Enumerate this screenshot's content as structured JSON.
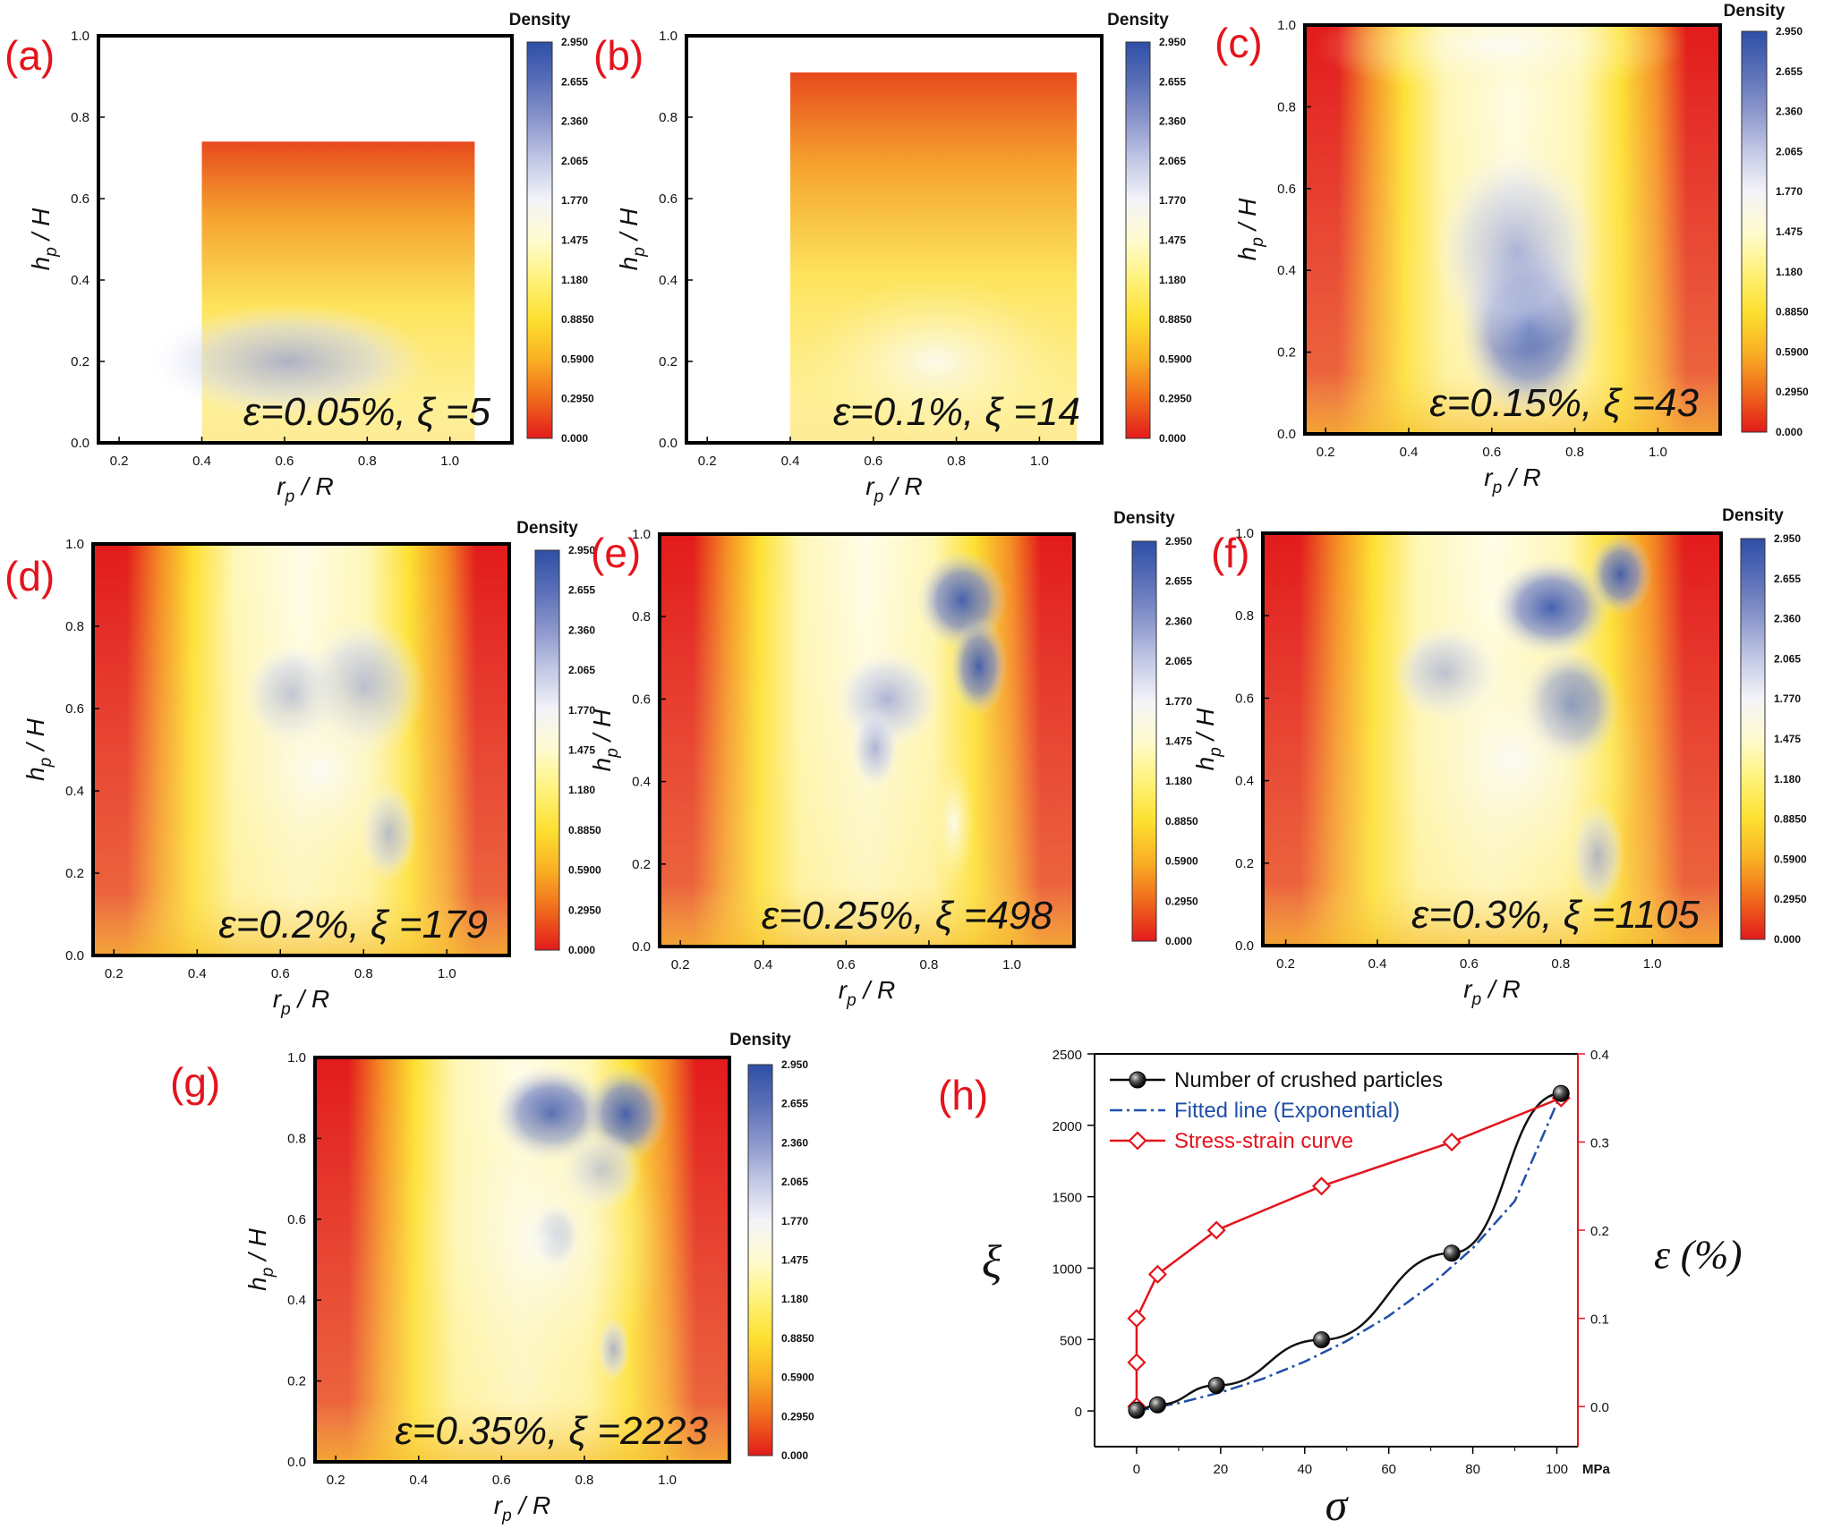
{
  "figure": {
    "colorbar": {
      "title": "Density",
      "ticks": [
        "2.950",
        "2.655",
        "2.360",
        "2.065",
        "1.770",
        "1.475",
        "1.180",
        "0.8850",
        "0.5900",
        "0.2950",
        "0.000"
      ],
      "colors": [
        "#2e4fa6",
        "#5a6fb8",
        "#8c97cc",
        "#c3c9e6",
        "#f4f4f8",
        "#fffbcf",
        "#fff27a",
        "#fde030",
        "#f9b024",
        "#f06a1c",
        "#e21b1b"
      ]
    },
    "heatmap_axes": {
      "x_label": "r_p / R",
      "y_label": "h_p / H",
      "x_ticks": [
        "0.2",
        "0.4",
        "0.6",
        "0.8",
        "1.0"
      ],
      "y_ticks": [
        "0.0",
        "0.2",
        "0.4",
        "0.6",
        "0.8",
        "1.0"
      ]
    },
    "panels": [
      {
        "letter": "(a)",
        "annotation": "ε=0.05%, ξ =5",
        "strain_pct": 0.05,
        "crushed": 5
      },
      {
        "letter": "(b)",
        "annotation": "ε=0.1%, ξ =14",
        "strain_pct": 0.1,
        "crushed": 14
      },
      {
        "letter": "(c)",
        "annotation": "ε=0.15%, ξ =43",
        "strain_pct": 0.15,
        "crushed": 43
      },
      {
        "letter": "(d)",
        "annotation": "ε=0.2%, ξ =179",
        "strain_pct": 0.2,
        "crushed": 179
      },
      {
        "letter": "(e)",
        "annotation": "ε=0.25%, ξ =498",
        "strain_pct": 0.25,
        "crushed": 498
      },
      {
        "letter": "(f)",
        "annotation": "ε=0.3%, ξ =1105",
        "strain_pct": 0.3,
        "crushed": 1105
      },
      {
        "letter": "(g)",
        "annotation": "ε=0.35%, ξ =2223",
        "strain_pct": 0.35,
        "crushed": 2223
      }
    ],
    "panel_h": {
      "letter": "(h)",
      "units_label": "MPa",
      "x_axis_symbol": "σ",
      "left_axis_symbol": "ξ",
      "right_axis_label": "ε (%)",
      "left_color": "#111111",
      "right_color": "#e4141c",
      "fit_color": "#1f4fa8"
    }
  },
  "chart_data": {
    "type": "line",
    "title": "",
    "xlabel": "σ (MPa)",
    "ylabel": "ξ",
    "y2label": "ε (%)",
    "xlim": [
      -10,
      105
    ],
    "ylim": [
      -250,
      2500
    ],
    "y2lim": [
      -0.0455,
      0.4
    ],
    "x_ticks": [
      0,
      20,
      40,
      60,
      80,
      100
    ],
    "y_ticks": [
      0,
      500,
      1000,
      1500,
      2000,
      2500
    ],
    "y2_ticks": [
      0.0,
      0.1,
      0.2,
      0.3,
      0.4
    ],
    "legend_position": "top-left",
    "series": [
      {
        "name": "Number of crushed particles",
        "axis": "left",
        "marker": "sphere",
        "x": [
          0,
          5,
          19,
          44,
          75,
          101
        ],
        "y": [
          5,
          43,
          179,
          498,
          1105,
          2223
        ]
      },
      {
        "name": "Fitted line (Exponential)",
        "axis": "left",
        "style": "dash-dot",
        "x": [
          0,
          10,
          20,
          30,
          40,
          50,
          60,
          70,
          80,
          90,
          101
        ],
        "y": [
          0,
          55,
          130,
          225,
          345,
          490,
          665,
          880,
          1140,
          1470,
          2223
        ]
      },
      {
        "name": "Stress-strain curve",
        "axis": "right",
        "marker": "diamond",
        "x": [
          0,
          0,
          0,
          5,
          19,
          44,
          75,
          101
        ],
        "y": [
          0.0,
          0.05,
          0.1,
          0.15,
          0.2,
          0.25,
          0.3,
          0.35
        ]
      }
    ]
  }
}
